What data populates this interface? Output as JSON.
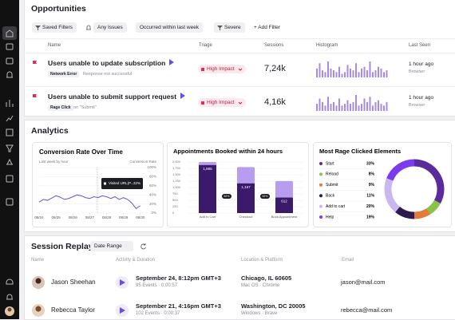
{
  "opportunities": {
    "title": "Opportunities",
    "filters": [
      "Saved Filters",
      "Any Issues",
      "Occurred within last week",
      "Severe"
    ],
    "add_filter": "Add Filter",
    "columns": [
      "Name",
      "Triage",
      "Sessions",
      "Histogram",
      "Last Seen"
    ],
    "rows": [
      {
        "name": "Users unable to update subscription",
        "tag": "Network Error",
        "detail": "Response not successful",
        "triage": "High Impact",
        "sessions": "7,24k",
        "histogram": [
          5,
          8,
          4,
          3,
          9,
          5,
          4,
          3,
          6,
          2,
          3,
          7,
          5,
          4,
          8,
          3,
          5,
          6,
          4,
          9,
          3,
          4,
          6,
          5,
          3,
          4
        ],
        "last_seen": "1 hour ago",
        "platform": "Browser"
      },
      {
        "name": "Users unable to submit support request",
        "tag": "Rage Click",
        "detail": "on \"Submit\"",
        "triage": "High Impact",
        "sessions": "4,16k",
        "histogram": [
          4,
          7,
          5,
          3,
          8,
          4,
          5,
          3,
          7,
          3,
          4,
          6,
          4,
          5,
          9,
          3,
          4,
          7,
          5,
          8,
          3,
          5,
          6,
          4,
          3,
          5
        ],
        "last_seen": "1 hour ago",
        "platform": "Browser"
      }
    ]
  },
  "analytics": {
    "title": "Analytics",
    "conversion": {
      "type": "line",
      "title": "Conversion Rate Over Time",
      "subtitle": "Last week by hour",
      "y_label": "Conversion Rate",
      "x": [
        0,
        6,
        12,
        18,
        24,
        30,
        36,
        42,
        48,
        54,
        60,
        66,
        72,
        78,
        84,
        90,
        96,
        102,
        108,
        114,
        120,
        126,
        132,
        138,
        144
      ],
      "values": [
        24,
        30,
        28,
        33,
        38,
        35,
        30,
        32,
        36,
        40,
        38,
        34,
        32,
        36,
        34,
        38,
        36,
        32,
        36,
        30,
        34,
        30,
        22,
        10,
        16
      ],
      "color": "#6b4fd8",
      "xlim": [
        0,
        150
      ],
      "xticks": [
        {
          "value": 0,
          "label": "08/24"
        },
        {
          "value": 24,
          "label": "08/25"
        },
        {
          "value": 48,
          "label": "08/26"
        },
        {
          "value": 72,
          "label": "08/27"
        },
        {
          "value": 96,
          "label": "08/28"
        },
        {
          "value": 120,
          "label": "08/29"
        },
        {
          "value": 144,
          "label": "08/30"
        }
      ],
      "ylim": [
        0,
        100
      ],
      "yticks": [
        {
          "value": 0,
          "label": "0%"
        },
        {
          "value": 20,
          "label": "20%"
        },
        {
          "value": 40,
          "label": "40%"
        },
        {
          "value": 60,
          "label": "60%"
        },
        {
          "value": 80,
          "label": "80%"
        },
        {
          "value": 100,
          "label": "100%"
        }
      ],
      "tooltip": {
        "label": "Visited URL(P...",
        "value": "32%"
      }
    },
    "appointments": {
      "type": "stacked_bar",
      "title": "Appointments Booked within 24 hours",
      "categories": [
        "Add to Cart",
        "Checkout",
        "Book Appointment"
      ],
      "series": [
        {
          "color": "#3b1a6b",
          "values": [
            1885,
            1167,
            612
          ],
          "value_labels": [
            "1,885",
            "1,167",
            "612"
          ]
        },
        {
          "color": "#b79cf0",
          "values": [
            115,
            633,
            640
          ]
        }
      ],
      "step_labels": [
        "62%",
        "52%"
      ],
      "ylim": [
        0,
        2000
      ],
      "yticks": [
        0,
        250,
        500,
        750,
        {
          "value": 1000,
          "label": "1,000"
        },
        {
          "value": 1250,
          "label": "1,250"
        },
        {
          "value": 1500,
          "label": "1,500"
        },
        {
          "value": 1750,
          "label": "1,750"
        },
        {
          "value": 2000,
          "label": "2,000"
        }
      ]
    },
    "rage": {
      "type": "donut",
      "title": "Most Rage Clicked Elements",
      "categories": [
        "Start",
        "Reload",
        "Submit",
        "Back",
        "Add to cart",
        "Help"
      ],
      "values": [
        33,
        8,
        9,
        11,
        20,
        19
      ],
      "value_labels": [
        "33%",
        "8%",
        "9%",
        "11%",
        "20%",
        "19%"
      ],
      "colors": [
        "#5b2a9c",
        "#8bc34a",
        "#e07b39",
        "#2d1b4e",
        "#c9b8f0",
        "#7c3aed"
      ]
    }
  },
  "session_replay": {
    "title": "Session Replay",
    "date_range": "Date Range",
    "columns": [
      "Name",
      "Activity & Duration",
      "Location & Platform",
      "Email"
    ],
    "rows": [
      {
        "name": "Jason Sheehan",
        "date": "September 24, 8:12pm GMT+3",
        "events": "95 Events",
        "duration": "0:00:57",
        "location": "Chicago, IL 60605",
        "os": "Mac OS",
        "browser": "Chrome",
        "email": "jason@mail.com"
      },
      {
        "name": "Rebecca Taylor",
        "date": "September 21, 4:16pm GMT+3",
        "events": "102 Events",
        "duration": "0:00:37",
        "location": "Washington, DC 20005",
        "os": "Windows",
        "browser": "Brave",
        "email": "rebecca@mail.com"
      }
    ]
  }
}
